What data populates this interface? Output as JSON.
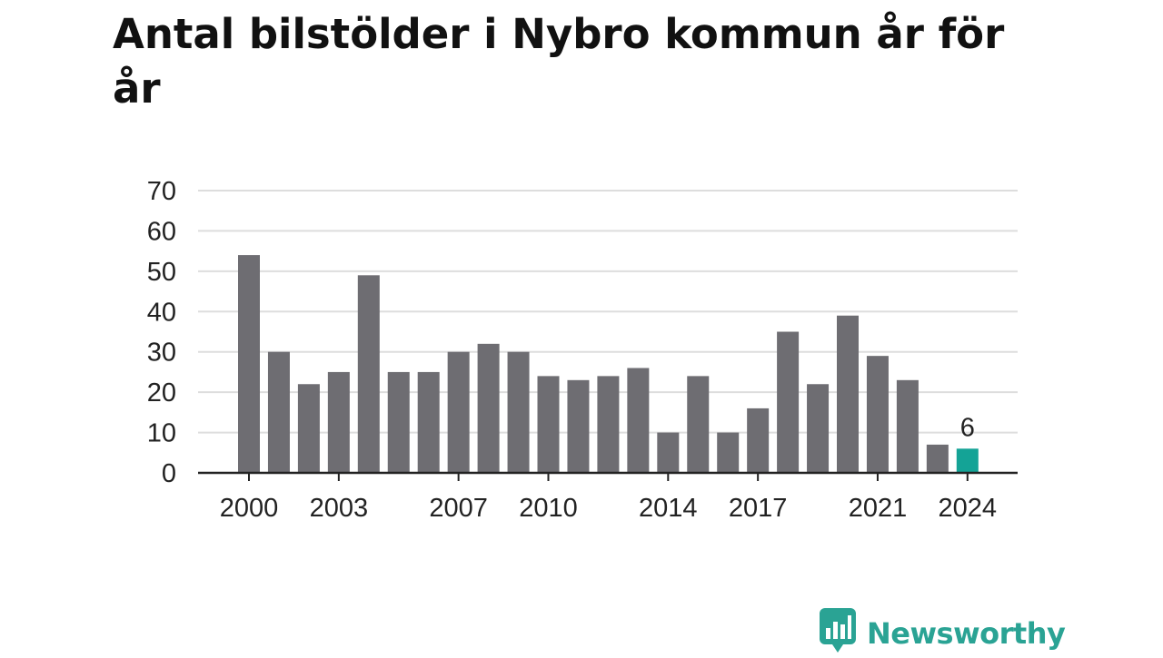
{
  "title": "Antal bilstölder i Nybro kommun år för år",
  "brand": {
    "name": "Newsworthy",
    "icon": "bar-chart-speech-bubble-icon"
  },
  "colors": {
    "bar": "#6e6d72",
    "highlight": "#14a396",
    "grid": "#dddddd",
    "axis": "#222222",
    "brand": "#2aa394"
  },
  "chart_data": {
    "type": "bar",
    "title": "Antal bilstölder i Nybro kommun år för år",
    "xlabel": "",
    "ylabel": "",
    "ylim": [
      0,
      70
    ],
    "yticks": [
      0,
      10,
      20,
      30,
      40,
      50,
      60,
      70
    ],
    "xtick_labels": [
      "2000",
      "2003",
      "2007",
      "2010",
      "2014",
      "2017",
      "2021",
      "2024"
    ],
    "categories": [
      "2000",
      "2001",
      "2002",
      "2003",
      "2004",
      "2005",
      "2006",
      "2007",
      "2008",
      "2009",
      "2010",
      "2011",
      "2012",
      "2013",
      "2014",
      "2015",
      "2016",
      "2017",
      "2018",
      "2019",
      "2020",
      "2021",
      "2022",
      "2023",
      "2024"
    ],
    "values": [
      54,
      30,
      22,
      25,
      49,
      25,
      25,
      30,
      32,
      30,
      24,
      23,
      24,
      26,
      10,
      24,
      10,
      16,
      35,
      22,
      39,
      29,
      23,
      7,
      6
    ],
    "highlight": {
      "category": "2024",
      "label": "6"
    },
    "grid": true,
    "legend": "none"
  }
}
